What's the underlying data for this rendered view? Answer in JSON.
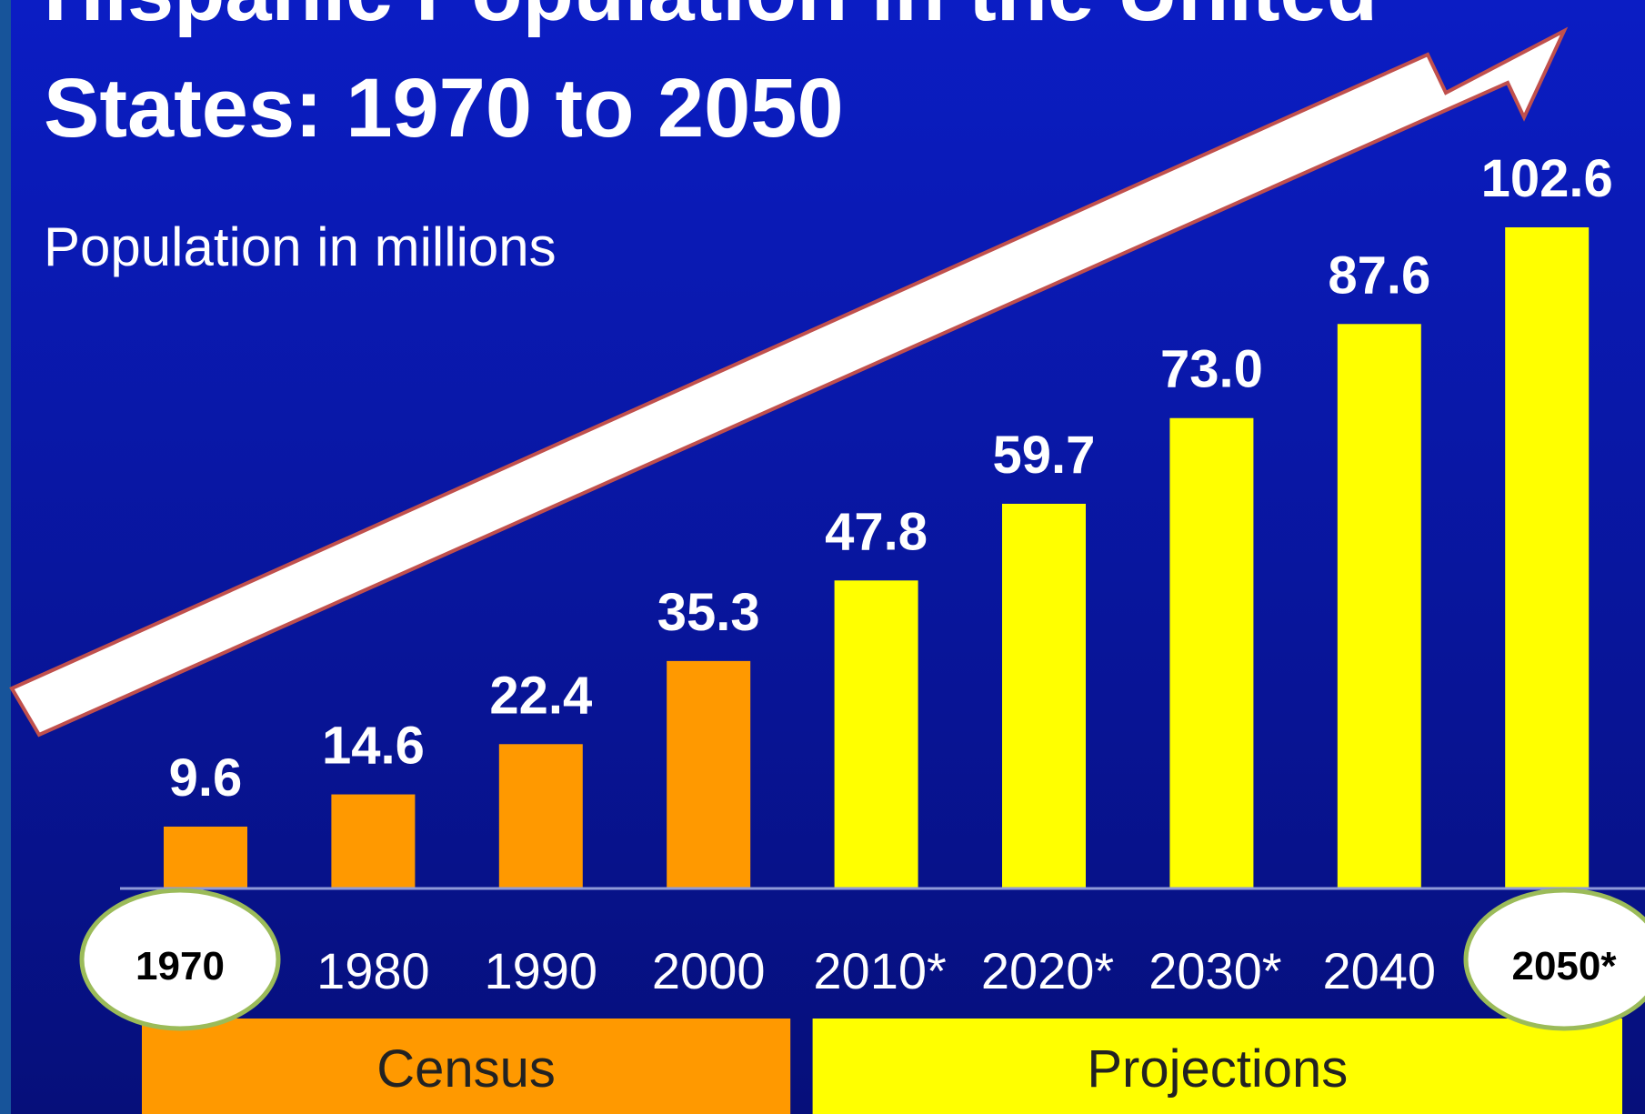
{
  "chart_data": {
    "type": "bar",
    "title_line1": "Hispanic Population in the United",
    "title_line2": "States: 1970 to 2050",
    "subtitle": "Population in millions",
    "categories": [
      "1970",
      "1980",
      "1990",
      "2000",
      "2010*",
      "2020*",
      "2030*",
      "2040",
      "2050*"
    ],
    "values": [
      9.6,
      14.6,
      22.4,
      35.3,
      47.8,
      59.7,
      73.0,
      87.6,
      102.6
    ],
    "value_labels": [
      "9.6",
      "14.6",
      "22.4",
      "35.3",
      "47.8",
      "59.7",
      "73.0",
      "87.6",
      "102.6"
    ],
    "highlighted_categories": [
      "1970",
      "2050*"
    ],
    "groups": [
      {
        "label": "Census",
        "from": 0,
        "to": 3,
        "color": "#ff9900"
      },
      {
        "label": "Projections",
        "from": 4,
        "to": 8,
        "color": "#ffff00"
      }
    ],
    "ylim": [
      0,
      102.6
    ],
    "grid": false,
    "legend": "none",
    "colors": {
      "background": "#0a1aa8",
      "census": "#ff9900",
      "projections": "#ffff00",
      "arrow_fill": "#ffffff",
      "arrow_stroke": "#c0504d",
      "circle_fill": "#ffffff",
      "circle_stroke": "#9bbb59"
    }
  }
}
